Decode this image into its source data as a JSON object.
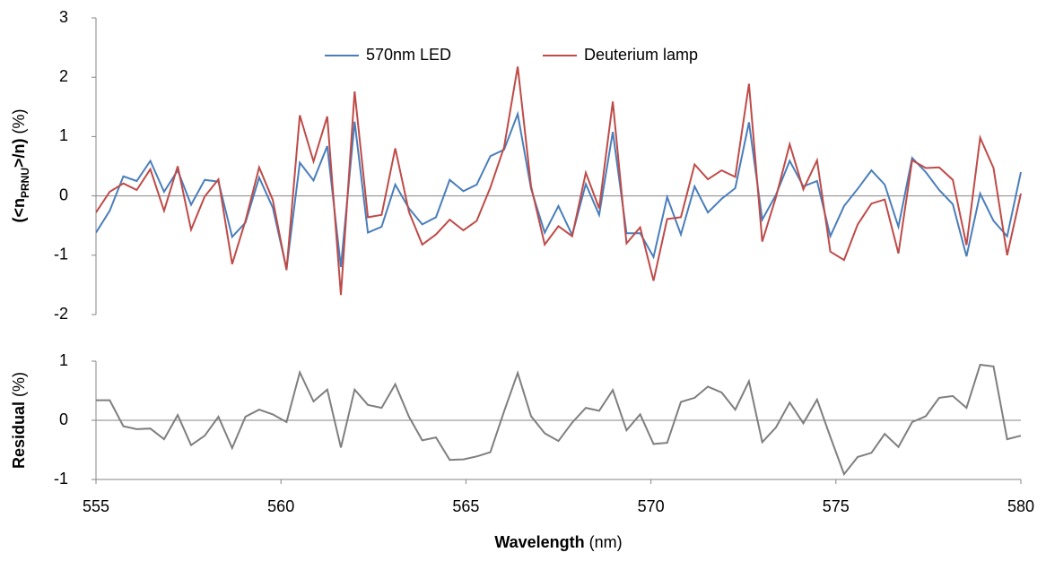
{
  "chart_data": [
    {
      "type": "line",
      "x": [
        555.0,
        555.37,
        555.74,
        556.1,
        556.47,
        556.84,
        557.21,
        557.57,
        557.94,
        558.31,
        558.68,
        559.04,
        559.41,
        559.78,
        560.15,
        560.51,
        560.88,
        561.25,
        561.62,
        561.99,
        562.35,
        562.72,
        563.09,
        563.46,
        563.82,
        564.19,
        564.56,
        564.93,
        565.29,
        565.66,
        566.03,
        566.4,
        566.76,
        567.13,
        567.5,
        567.87,
        568.24,
        568.6,
        568.97,
        569.34,
        569.71,
        570.07,
        570.44,
        570.81,
        571.18,
        571.54,
        571.91,
        572.28,
        572.65,
        573.01,
        573.38,
        573.75,
        574.12,
        574.49,
        574.85,
        575.22,
        575.59,
        575.96,
        576.32,
        576.69,
        577.06,
        577.43,
        577.79,
        578.16,
        578.53,
        578.9,
        579.26,
        579.63,
        580.0
      ],
      "series": [
        {
          "name": "570nm LED",
          "color": "#4a7ebb",
          "values": [
            -0.62,
            -0.25,
            0.33,
            0.25,
            0.59,
            0.07,
            0.43,
            -0.15,
            0.27,
            0.24,
            -0.69,
            -0.45,
            0.31,
            -0.2,
            -1.23,
            0.56,
            0.26,
            0.84,
            -1.2,
            1.25,
            -0.62,
            -0.52,
            0.19,
            -0.21,
            -0.48,
            -0.36,
            0.27,
            0.08,
            0.19,
            0.67,
            0.78,
            1.38,
            0.12,
            -0.62,
            -0.17,
            -0.66,
            0.2,
            -0.32,
            1.08,
            -0.63,
            -0.63,
            -1.03,
            -0.02,
            -0.65,
            0.16,
            -0.28,
            -0.05,
            0.13,
            1.24,
            -0.4,
            0.02,
            0.59,
            0.16,
            0.25,
            -0.68,
            -0.17,
            0.12,
            0.43,
            0.19,
            -0.52,
            0.64,
            0.4,
            0.1,
            -0.14,
            -1.02,
            0.04,
            -0.42,
            -0.68,
            0.4
          ]
        },
        {
          "name": "Deuterium lamp",
          "color": "#be4b48",
          "values": [
            -0.28,
            0.07,
            0.21,
            0.1,
            0.45,
            -0.25,
            0.5,
            -0.57,
            -0.01,
            0.28,
            -1.15,
            -0.42,
            0.48,
            -0.07,
            -1.25,
            1.36,
            0.58,
            1.34,
            -1.67,
            1.76,
            -0.36,
            -0.32,
            0.8,
            -0.27,
            -0.82,
            -0.65,
            -0.4,
            -0.58,
            -0.42,
            0.14,
            0.82,
            2.18,
            0.16,
            -0.82,
            -0.51,
            -0.68,
            0.39,
            -0.21,
            1.59,
            -0.8,
            -0.53,
            -1.43,
            -0.39,
            -0.36,
            0.53,
            0.28,
            0.43,
            0.32,
            1.89,
            -0.77,
            -0.02,
            0.87,
            0.11,
            0.6,
            -0.94,
            -1.08,
            -0.48,
            -0.13,
            -0.06,
            -0.97,
            0.6,
            0.47,
            0.48,
            0.27,
            -0.83,
            0.98,
            0.47,
            -1.0,
            0.04
          ]
        }
      ],
      "ylabel": [
        "(<n",
        "PRNU",
        ">/n)",
        "(%)"
      ],
      "ylim": [
        -2,
        3
      ],
      "yticks": [
        -2,
        -1,
        0,
        1,
        2,
        3
      ],
      "legend": "top"
    },
    {
      "type": "line",
      "values": [
        0.34,
        0.34,
        -0.1,
        -0.15,
        -0.14,
        -0.32,
        0.09,
        -0.42,
        -0.26,
        0.06,
        -0.47,
        0.06,
        0.18,
        0.1,
        -0.03,
        0.81,
        0.32,
        0.52,
        -0.46,
        0.52,
        0.26,
        0.21,
        0.61,
        0.06,
        -0.34,
        -0.29,
        -0.67,
        -0.66,
        -0.61,
        -0.54,
        0.15,
        0.8,
        0.07,
        -0.22,
        -0.35,
        -0.04,
        0.21,
        0.16,
        0.51,
        -0.17,
        0.1,
        -0.4,
        -0.38,
        0.31,
        0.38,
        0.57,
        0.47,
        0.18,
        0.66,
        -0.37,
        -0.12,
        0.3,
        -0.05,
        0.35,
        -0.28,
        -0.91,
        -0.62,
        -0.55,
        -0.23,
        -0.45,
        -0.03,
        0.07,
        0.38,
        0.41,
        0.21,
        0.94,
        0.91,
        -0.32,
        -0.26
      ],
      "color": "#7f7f7f",
      "ylabel": [
        "Residual",
        "(%)"
      ],
      "ylim": [
        -1,
        1
      ],
      "yticks": [
        -1,
        0,
        1
      ],
      "xlabel": [
        "Wavelength",
        "(nm)"
      ],
      "xlim": [
        555,
        580
      ],
      "xticks": [
        555,
        560,
        565,
        570,
        575,
        580
      ]
    }
  ]
}
